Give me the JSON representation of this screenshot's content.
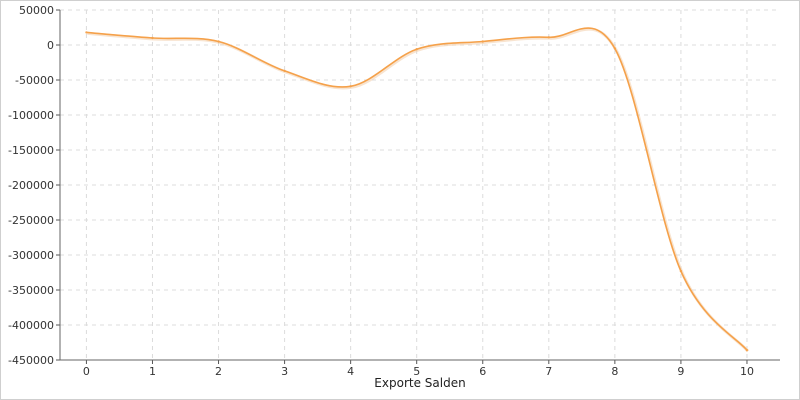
{
  "chart_data": {
    "type": "line",
    "title": "",
    "xlabel": "Exporte Salden",
    "ylabel": "",
    "xlim": [
      -0.4,
      10.5
    ],
    "ylim": [
      -450000,
      50000
    ],
    "x_ticks": [
      0,
      1,
      2,
      3,
      4,
      5,
      6,
      7,
      8,
      9,
      10
    ],
    "y_ticks": [
      50000,
      0,
      -50000,
      -100000,
      -150000,
      -200000,
      -250000,
      -300000,
      -350000,
      -400000,
      -450000
    ],
    "grid": true,
    "legend": "none",
    "series": [
      {
        "color": "#f5a14a",
        "x": [
          0,
          1,
          2,
          3,
          4,
          5,
          6,
          7,
          8,
          9,
          10
        ],
        "values": [
          18000,
          10000,
          5000,
          -37000,
          -59000,
          -6000,
          5000,
          11000,
          -5000,
          -323000,
          -436000
        ]
      }
    ]
  }
}
